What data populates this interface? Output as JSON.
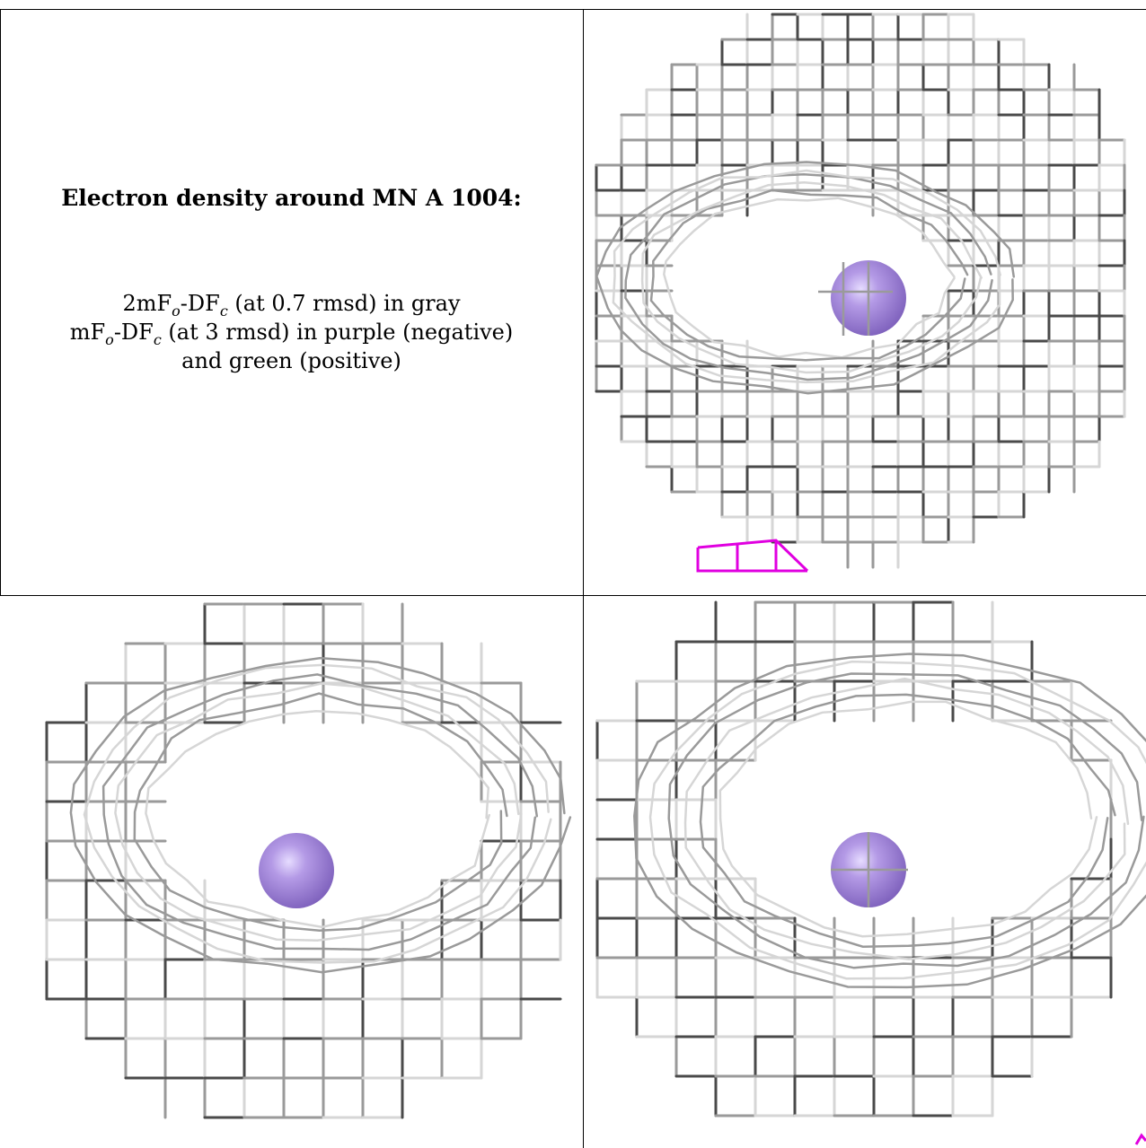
{
  "caption": {
    "title": "Electron density around MN A 1004:",
    "line1_a": "2mF",
    "line1_sub1": "o",
    "line1_b": "-DF",
    "line1_sub2": "c",
    "line1_c": " (at 0.7 rmsd) in gray",
    "line2_a": "mF",
    "line2_sub1": "o",
    "line2_b": "-DF",
    "line2_sub2": "c",
    "line2_c": " (at 3 rmsd) in purple (negative)",
    "line3": "and green (positive)"
  },
  "colors": {
    "mesh_gray": "#9a9a9a",
    "mesh_dark": "#4a4a4a",
    "mesh_light": "#d6d6d6",
    "negative_purple": "#e000e0",
    "atom_fill": "#9b7fd4",
    "atom_highlight": "#e6dcff"
  },
  "views": [
    {
      "name": "top-right-view",
      "has_negative_density": true
    },
    {
      "name": "bottom-left-view",
      "has_negative_density": false
    },
    {
      "name": "bottom-right-view",
      "has_negative_density": true
    }
  ]
}
